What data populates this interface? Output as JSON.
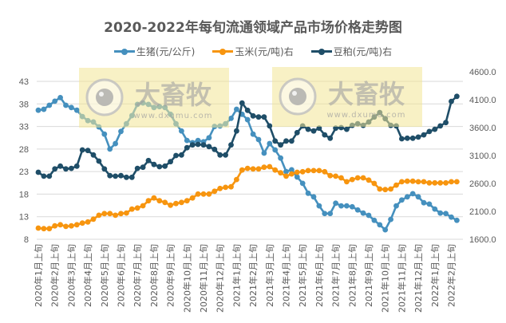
{
  "chart_data": {
    "type": "line",
    "title": "2020-2022年每旬流通领域产品市场价格走势图",
    "x_tick_labels": [
      "2020年1月上旬",
      "2020年2月上旬",
      "2020年3月上旬",
      "2020年4月上旬",
      "2020年5月上旬",
      "2020年6月上旬",
      "2020年7月上旬",
      "2020年8月上旬",
      "2020年9月上旬",
      "2020年10月上旬",
      "2020年11月上旬",
      "2020年12月上旬",
      "2021年1月上旬",
      "2021年2月上旬",
      "2021年3月上旬",
      "2021年4月上旬",
      "2021年5月上旬",
      "2021年6月上旬",
      "2021年7月上旬",
      "2021年8月上旬",
      "2021年9月上旬",
      "2021年10月上旬",
      "2021年11月上旬",
      "2021年12月上旬",
      "2022年1月上旬",
      "2022年2月上旬"
    ],
    "left_axis": {
      "ylim": [
        8,
        43
      ],
      "ticks": [
        "8",
        "13",
        "18",
        "23",
        "28",
        "33",
        "38",
        "43"
      ]
    },
    "right_axis": {
      "ylim": [
        1600,
        4600
      ],
      "ticks": [
        "1600.0",
        "2100.0",
        "2600.0",
        "3100.0",
        "3600.0",
        "4100.0",
        "4600.0"
      ]
    },
    "grid": true,
    "legend_position": "top",
    "series": [
      {
        "name": "生猪(元/公斤)",
        "axis": "left",
        "color": "#4590BE",
        "values": [
          36.6,
          36.8,
          37.7,
          38.6,
          39.4,
          37.7,
          37.2,
          36.6,
          35.2,
          34.3,
          34.0,
          32.9,
          31.3,
          28.0,
          29.2,
          31.9,
          33.6,
          35.4,
          37.9,
          38.2,
          37.9,
          37.2,
          37.4,
          37.2,
          35.7,
          33.6,
          32.0,
          29.9,
          29.4,
          29.9,
          29.6,
          30.5,
          33.0,
          33.1,
          33.6,
          34.8,
          36.8,
          35.7,
          34.5,
          31.3,
          30.1,
          27.1,
          29.2,
          27.8,
          26.0,
          23.0,
          23.4,
          21.8,
          20.4,
          18.2,
          17.4,
          15.4,
          13.7,
          13.7,
          16.0,
          15.4,
          15.4,
          15.2,
          14.5,
          13.8,
          13.3,
          12.2,
          11.2,
          10.1,
          12.4,
          15.4,
          16.7,
          17.4,
          18.1,
          17.4,
          16.1,
          15.8,
          14.7,
          13.8,
          13.7,
          12.9,
          12.2
        ]
      },
      {
        "name": "玉米(元/吨)右",
        "axis": "right",
        "color": "#F7950F",
        "values": [
          1800,
          1790,
          1790,
          1840,
          1860,
          1830,
          1840,
          1860,
          1890,
          1910,
          1960,
          2030,
          2060,
          2060,
          2030,
          2060,
          2070,
          2140,
          2160,
          2200,
          2290,
          2340,
          2290,
          2260,
          2210,
          2240,
          2260,
          2290,
          2340,
          2410,
          2410,
          2410,
          2460,
          2510,
          2530,
          2540,
          2670,
          2840,
          2870,
          2860,
          2860,
          2890,
          2900,
          2840,
          2790,
          2730,
          2770,
          2800,
          2810,
          2830,
          2830,
          2830,
          2810,
          2740,
          2730,
          2700,
          2630,
          2670,
          2700,
          2700,
          2660,
          2600,
          2500,
          2490,
          2500,
          2570,
          2630,
          2640,
          2640,
          2630,
          2630,
          2610,
          2610,
          2610,
          2610,
          2630,
          2630
        ]
      },
      {
        "name": "豆粕(元/吨)右",
        "axis": "right",
        "color": "#1F4E68",
        "values": [
          2800,
          2730,
          2730,
          2860,
          2910,
          2860,
          2870,
          2910,
          3200,
          3190,
          3110,
          3000,
          2860,
          2740,
          2730,
          2740,
          2710,
          2710,
          2870,
          2890,
          3010,
          2940,
          2900,
          2910,
          2990,
          3100,
          3110,
          3240,
          3290,
          3300,
          3290,
          3260,
          3210,
          3110,
          3110,
          3290,
          3540,
          4040,
          3910,
          3810,
          3790,
          3790,
          3630,
          3360,
          3290,
          3360,
          3360,
          3510,
          3630,
          3570,
          3540,
          3590,
          3470,
          3410,
          3590,
          3600,
          3570,
          3640,
          3670,
          3640,
          3700,
          3790,
          3870,
          3760,
          3640,
          3630,
          3400,
          3410,
          3410,
          3430,
          3470,
          3530,
          3570,
          3630,
          3690,
          4070,
          4160
        ]
      }
    ]
  },
  "watermark": {
    "brand": "大畜牧",
    "site": "www.dxumu.com"
  }
}
